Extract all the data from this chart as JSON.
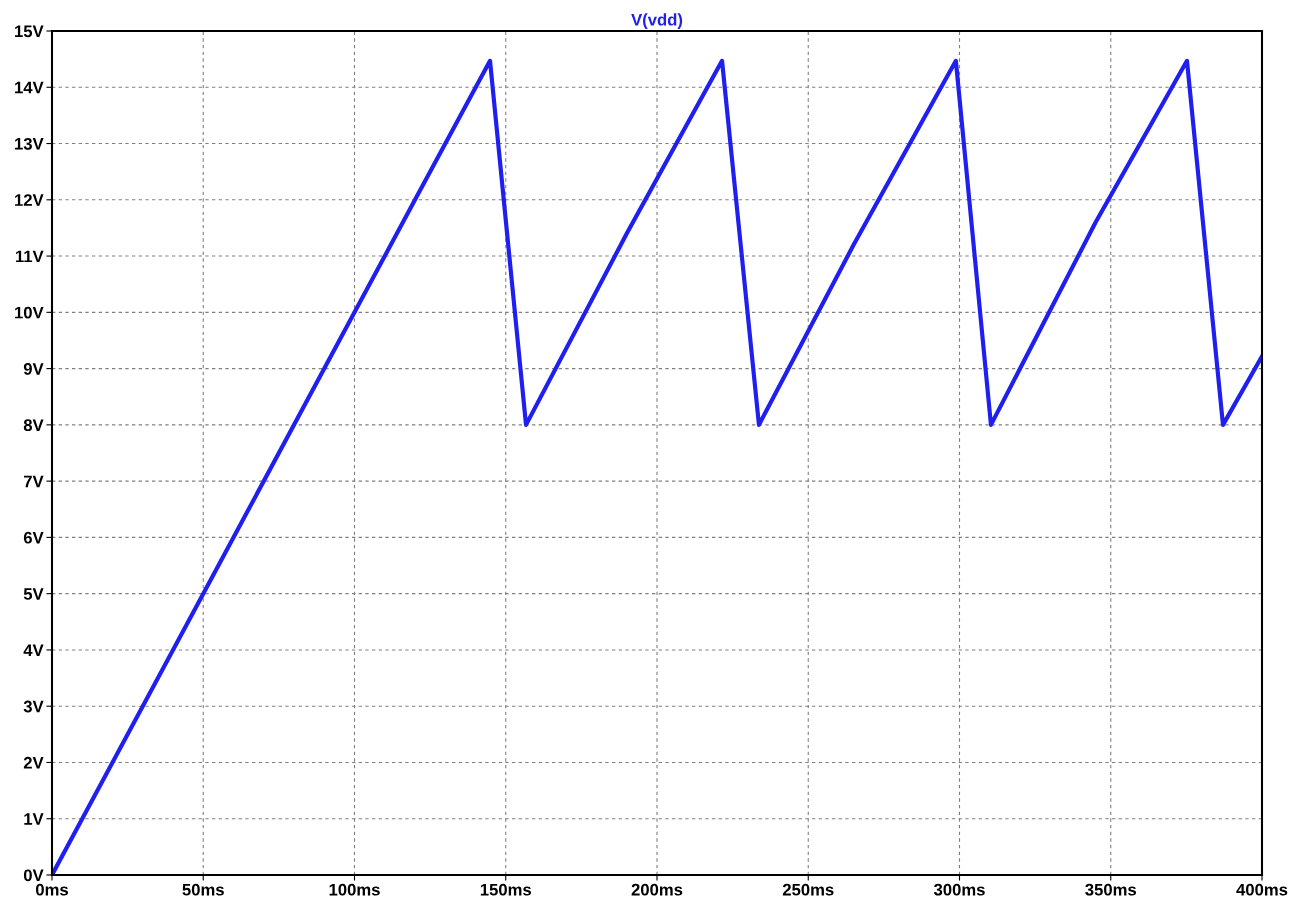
{
  "chart_data": {
    "type": "line",
    "title": "V(vdd)",
    "series": [
      {
        "color": "#1f1fef",
        "x": [
          0,
          50,
          100,
          120,
          144.8,
          156.7,
          190,
          221.5,
          233.7,
          265,
          298.8,
          310.4,
          345,
          375.2,
          387.1,
          400
        ],
        "values": [
          0,
          5.0,
          10.0,
          12.0,
          14.47,
          8.0,
          11.4,
          14.47,
          8.0,
          11.2,
          14.47,
          8.0,
          11.6,
          14.47,
          8.0,
          9.22
        ]
      }
    ],
    "xlim": [
      0,
      400
    ],
    "xticks": [
      {
        "value": 0,
        "label": "0ms"
      },
      {
        "value": 50,
        "label": "50ms"
      },
      {
        "value": 100,
        "label": "100ms"
      },
      {
        "value": 150,
        "label": "150ms"
      },
      {
        "value": 200,
        "label": "200ms"
      },
      {
        "value": 250,
        "label": "250ms"
      },
      {
        "value": 300,
        "label": "300ms"
      },
      {
        "value": 350,
        "label": "350ms"
      },
      {
        "value": 400,
        "label": "400ms"
      }
    ],
    "ylim": [
      0,
      15
    ],
    "yticks": [
      {
        "value": 0,
        "label": "0V"
      },
      {
        "value": 1,
        "label": "1V"
      },
      {
        "value": 2,
        "label": "2V"
      },
      {
        "value": 3,
        "label": "3V"
      },
      {
        "value": 4,
        "label": "4V"
      },
      {
        "value": 5,
        "label": "5V"
      },
      {
        "value": 6,
        "label": "6V"
      },
      {
        "value": 7,
        "label": "7V"
      },
      {
        "value": 8,
        "label": "8V"
      },
      {
        "value": 9,
        "label": "9V"
      },
      {
        "value": 10,
        "label": "10V"
      },
      {
        "value": 11,
        "label": "11V"
      },
      {
        "value": 12,
        "label": "12V"
      },
      {
        "value": 13,
        "label": "13V"
      },
      {
        "value": 14,
        "label": "14V"
      },
      {
        "value": 15,
        "label": "15V"
      }
    ],
    "grid": true,
    "line_style": "solid"
  }
}
